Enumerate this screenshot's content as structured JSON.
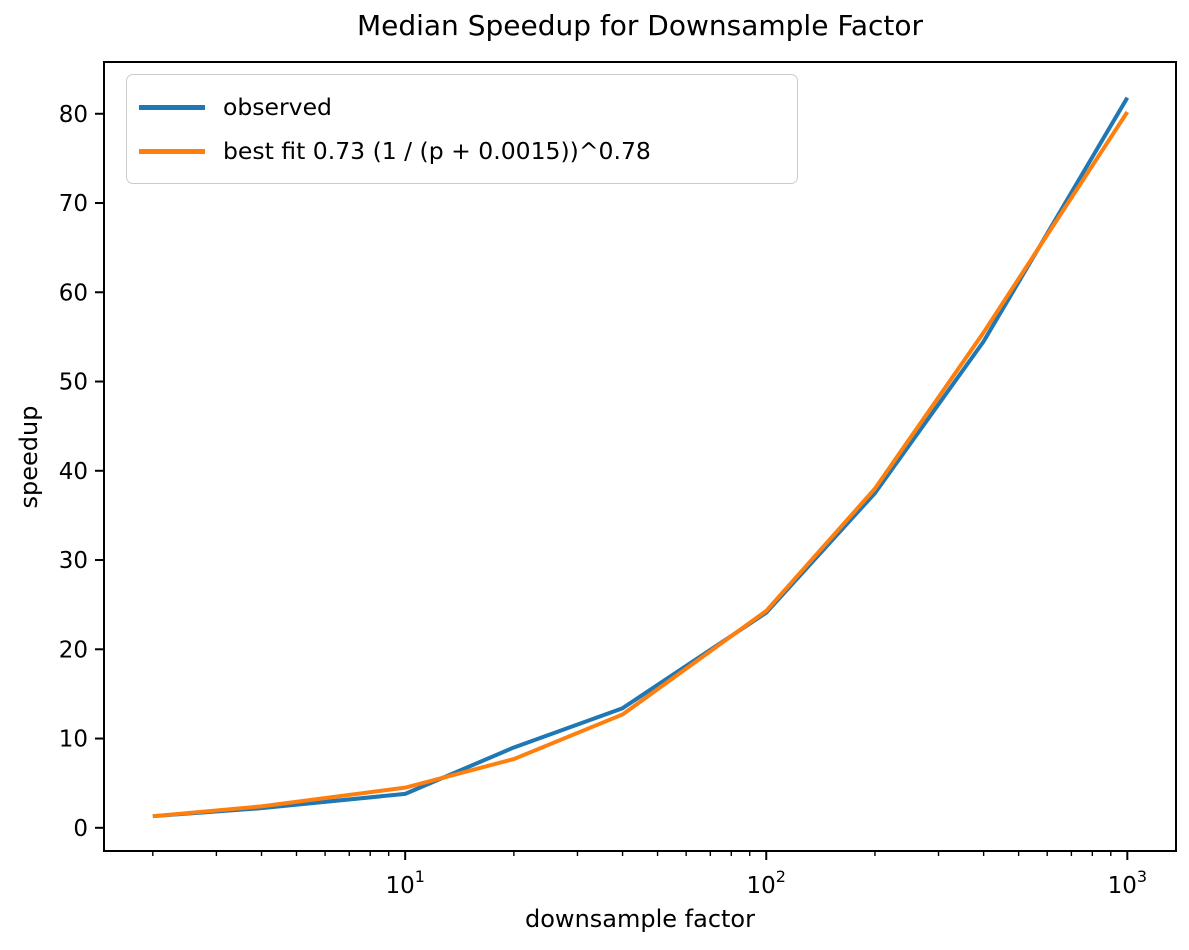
{
  "chart_data": {
    "type": "line",
    "title": "Median Speedup for Downsample Factor",
    "xlabel": "downsample factor",
    "ylabel": "speedup",
    "x_scale": "log",
    "xlim": [
      1.465,
      1364
    ],
    "ylim": [
      -2.6,
      85.8
    ],
    "grid": false,
    "x": [
      2,
      4,
      10,
      20,
      40,
      100,
      200,
      400,
      1000
    ],
    "series": [
      {
        "name": "observed",
        "color": "#1f77b4",
        "values": [
          1.3,
          2.2,
          3.8,
          9.0,
          13.4,
          24.1,
          37.5,
          54.5,
          81.8
        ]
      },
      {
        "name": "best fit 0.73 (1 / (p + 0.0015))^0.78",
        "color": "#ff7f0e",
        "values": [
          1.3,
          2.4,
          4.5,
          7.7,
          12.7,
          24.3,
          38.0,
          55.5,
          80.2
        ]
      }
    ],
    "legend": {
      "position": "upper left"
    },
    "y_ticks": [
      0,
      10,
      20,
      30,
      40,
      50,
      60,
      70,
      80
    ],
    "x_ticks": [
      {
        "value": 10,
        "base": "10",
        "exp": "1"
      },
      {
        "value": 100,
        "base": "10",
        "exp": "2"
      },
      {
        "value": 1000,
        "base": "10",
        "exp": "3"
      }
    ],
    "x_minor_ticks": [
      2,
      3,
      4,
      5,
      6,
      7,
      8,
      9,
      20,
      30,
      40,
      50,
      60,
      70,
      80,
      90,
      200,
      300,
      400,
      500,
      600,
      700,
      800,
      900
    ]
  }
}
